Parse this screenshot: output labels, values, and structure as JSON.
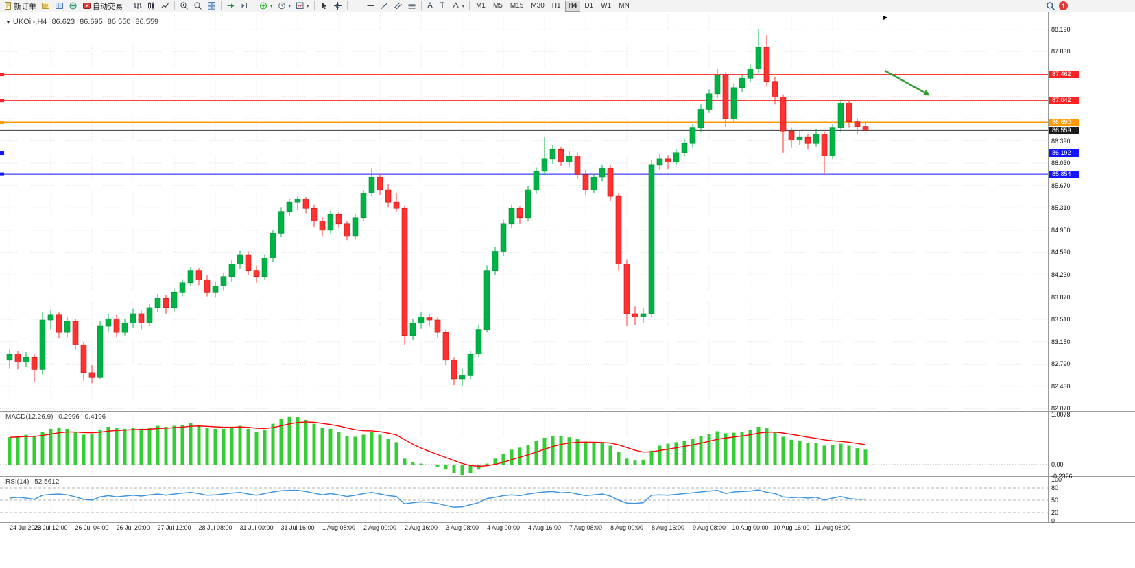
{
  "toolbar": {
    "new_order": "新订单",
    "autotrading": "自动交易",
    "timeframes": [
      "M1",
      "M5",
      "M15",
      "M30",
      "H1",
      "H4",
      "D1",
      "W1",
      "MN"
    ],
    "active_timeframe": "H4",
    "notification_count": "1"
  },
  "symbol_line": {
    "symbol": "UKOil-,H4",
    "open": "86.623",
    "high": "86.695",
    "low": "86.550",
    "close": "86.559"
  },
  "macd_panel": {
    "label": "MACD(12,26,9)",
    "value_main": "0.2996",
    "value_signal": "0.4196",
    "scale_labels": [
      "1.0078",
      "0.00",
      "-0.2326"
    ]
  },
  "rsi_panel": {
    "label": "RSI(14)",
    "value": "52.5612",
    "scale_labels": [
      "100",
      "80",
      "50",
      "20",
      "0"
    ],
    "levels": [
      80,
      50,
      20
    ]
  },
  "colors": {
    "bull": "#00b245",
    "bull_border": "#008f36",
    "bear": "#ff3131",
    "bear_border": "#c41111",
    "macd_hist": "#35cc35",
    "macd_signal": "#ff0000",
    "rsi_line": "#3f95e0",
    "grid": "#e4e4e4",
    "separator": "#9a9a9a",
    "current": "#3a3a3a"
  },
  "chart_data": {
    "type": "candlestick",
    "symbol": "UKOil-",
    "timeframe": "H4",
    "ylim": [
      82.03,
      88.42
    ],
    "price_grid": {
      "start": 82.07,
      "step": 0.36,
      "count": 18
    },
    "y_ticks": [
      "88.190",
      "87.830",
      "86.390",
      "86.030",
      "85.670",
      "85.310",
      "84.950",
      "84.590",
      "84.230",
      "83.870",
      "83.510",
      "83.150",
      "82.790",
      "82.430",
      "82.070"
    ],
    "x_labels": [
      "24 Jul 2023",
      "25 Jul 12:00",
      "26 Jul 04:00",
      "26 Jul 20:00",
      "27 Jul 12:00",
      "28 Jul 08:00",
      "31 Jul 00:00",
      "31 Jul 16:00",
      "1 Aug 08:00",
      "2 Aug 00:00",
      "2 Aug 16:00",
      "3 Aug 08:00",
      "4 Aug 00:00",
      "4 Aug 16:00",
      "7 Aug 08:00",
      "8 Aug 00:00",
      "8 Aug 16:00",
      "9 Aug 08:00",
      "10 Aug 00:00",
      "10 Aug 16:00",
      "11 Aug 08:00"
    ],
    "hlines": [
      {
        "price": 87.462,
        "label": "87.462",
        "color": "#ff2222",
        "width": 1,
        "role": "resistance"
      },
      {
        "price": 87.042,
        "label": "87.042",
        "color": "#ff2222",
        "width": 1,
        "role": "resistance"
      },
      {
        "price": 86.69,
        "label": "86.690",
        "color": "#ff9900",
        "width": 2,
        "role": "pivot"
      },
      {
        "price": 86.192,
        "label": "86.192",
        "color": "#1414ff",
        "width": 1,
        "role": "support"
      },
      {
        "price": 85.854,
        "label": "85.854",
        "color": "#1414ff",
        "width": 1,
        "role": "support"
      }
    ],
    "current_price": {
      "value": 86.559,
      "label": "86.559",
      "color": "#3a3a3a"
    },
    "candles": [
      [
        82.85,
        83.02,
        82.72,
        82.95
      ],
      [
        82.95,
        83.0,
        82.7,
        82.82
      ],
      [
        82.82,
        82.98,
        82.74,
        82.9
      ],
      [
        82.9,
        82.95,
        82.5,
        82.7
      ],
      [
        82.7,
        83.62,
        82.62,
        83.5
      ],
      [
        83.5,
        83.66,
        83.35,
        83.58
      ],
      [
        83.58,
        83.62,
        83.2,
        83.3
      ],
      [
        83.3,
        83.55,
        83.22,
        83.48
      ],
      [
        83.48,
        83.52,
        83.02,
        83.1
      ],
      [
        83.1,
        83.15,
        82.52,
        82.65
      ],
      [
        82.65,
        82.78,
        82.48,
        82.58
      ],
      [
        82.58,
        83.48,
        82.55,
        83.4
      ],
      [
        83.4,
        83.6,
        83.3,
        83.52
      ],
      [
        83.52,
        83.58,
        83.22,
        83.3
      ],
      [
        83.3,
        83.52,
        83.25,
        83.45
      ],
      [
        83.45,
        83.68,
        83.38,
        83.6
      ],
      [
        83.6,
        83.65,
        83.35,
        83.45
      ],
      [
        83.45,
        83.76,
        83.4,
        83.7
      ],
      [
        83.7,
        83.92,
        83.62,
        83.85
      ],
      [
        83.85,
        83.9,
        83.6,
        83.7
      ],
      [
        83.7,
        84.0,
        83.64,
        83.95
      ],
      [
        83.95,
        84.16,
        83.88,
        84.1
      ],
      [
        84.1,
        84.36,
        84.04,
        84.3
      ],
      [
        84.3,
        84.34,
        84.06,
        84.15
      ],
      [
        84.15,
        84.22,
        83.88,
        83.95
      ],
      [
        83.95,
        84.12,
        83.86,
        84.05
      ],
      [
        84.05,
        84.26,
        83.98,
        84.2
      ],
      [
        84.2,
        84.46,
        84.12,
        84.4
      ],
      [
        84.4,
        84.62,
        84.32,
        84.55
      ],
      [
        84.55,
        84.6,
        84.22,
        84.3
      ],
      [
        84.3,
        84.38,
        84.1,
        84.2
      ],
      [
        84.2,
        84.56,
        84.15,
        84.5
      ],
      [
        84.5,
        84.96,
        84.44,
        84.9
      ],
      [
        84.9,
        85.32,
        84.84,
        85.25
      ],
      [
        85.25,
        85.46,
        85.18,
        85.4
      ],
      [
        85.4,
        85.5,
        85.28,
        85.45
      ],
      [
        85.45,
        85.48,
        85.22,
        85.3
      ],
      [
        85.3,
        85.36,
        85.0,
        85.1
      ],
      [
        85.1,
        85.16,
        84.86,
        84.95
      ],
      [
        84.95,
        85.26,
        84.9,
        85.2
      ],
      [
        85.2,
        85.24,
        84.98,
        85.05
      ],
      [
        85.05,
        85.1,
        84.78,
        84.85
      ],
      [
        84.85,
        85.2,
        84.8,
        85.15
      ],
      [
        85.15,
        85.6,
        85.1,
        85.55
      ],
      [
        85.55,
        85.95,
        85.5,
        85.8
      ],
      [
        85.8,
        85.86,
        85.52,
        85.6
      ],
      [
        85.6,
        85.7,
        85.32,
        85.4
      ],
      [
        85.4,
        85.55,
        85.25,
        85.3
      ],
      [
        85.3,
        85.35,
        83.1,
        83.25
      ],
      [
        83.25,
        83.52,
        83.18,
        83.45
      ],
      [
        83.45,
        83.62,
        83.36,
        83.55
      ],
      [
        83.55,
        83.6,
        83.4,
        83.5
      ],
      [
        83.5,
        83.55,
        83.22,
        83.3
      ],
      [
        83.3,
        83.35,
        82.78,
        82.85
      ],
      [
        82.85,
        82.9,
        82.45,
        82.55
      ],
      [
        82.55,
        82.72,
        82.43,
        82.6
      ],
      [
        82.6,
        83.0,
        82.55,
        82.95
      ],
      [
        82.95,
        83.42,
        82.9,
        83.35
      ],
      [
        83.35,
        84.38,
        83.3,
        84.3
      ],
      [
        84.3,
        84.68,
        84.22,
        84.6
      ],
      [
        84.6,
        85.12,
        84.54,
        85.05
      ],
      [
        85.05,
        85.36,
        84.98,
        85.3
      ],
      [
        85.3,
        85.34,
        85.05,
        85.15
      ],
      [
        85.15,
        85.66,
        85.1,
        85.6
      ],
      [
        85.6,
        85.96,
        85.54,
        85.9
      ],
      [
        85.9,
        86.45,
        85.84,
        86.1
      ],
      [
        86.1,
        86.32,
        86.02,
        86.25
      ],
      [
        86.25,
        86.3,
        85.98,
        86.05
      ],
      [
        86.05,
        86.22,
        85.96,
        86.15
      ],
      [
        86.15,
        86.2,
        85.78,
        85.85
      ],
      [
        85.85,
        85.92,
        85.52,
        85.6
      ],
      [
        85.6,
        85.86,
        85.55,
        85.8
      ],
      [
        85.8,
        86.0,
        85.74,
        85.95
      ],
      [
        85.95,
        86.0,
        85.42,
        85.5
      ],
      [
        85.5,
        85.55,
        84.3,
        84.4
      ],
      [
        84.4,
        84.48,
        83.4,
        83.6
      ],
      [
        83.6,
        83.72,
        83.42,
        83.55
      ],
      [
        83.55,
        83.7,
        83.45,
        83.6
      ],
      [
        83.6,
        86.08,
        83.55,
        86.0
      ],
      [
        86.0,
        86.18,
        85.92,
        86.1
      ],
      [
        86.1,
        86.16,
        85.94,
        86.05
      ],
      [
        86.05,
        86.26,
        86.0,
        86.2
      ],
      [
        86.2,
        86.42,
        86.14,
        86.35
      ],
      [
        86.35,
        86.66,
        86.28,
        86.6
      ],
      [
        86.6,
        86.98,
        86.54,
        86.9
      ],
      [
        86.9,
        87.22,
        86.84,
        87.15
      ],
      [
        87.15,
        87.55,
        87.08,
        87.45
      ],
      [
        87.45,
        87.5,
        86.62,
        86.75
      ],
      [
        86.75,
        87.32,
        86.7,
        87.25
      ],
      [
        87.25,
        87.46,
        87.18,
        87.4
      ],
      [
        87.4,
        87.62,
        87.34,
        87.55
      ],
      [
        87.55,
        88.19,
        87.48,
        87.9
      ],
      [
        87.9,
        88.1,
        87.28,
        87.35
      ],
      [
        87.35,
        87.42,
        86.98,
        87.1
      ],
      [
        87.1,
        87.14,
        86.2,
        86.55
      ],
      [
        86.55,
        86.6,
        86.28,
        86.4
      ],
      [
        86.4,
        86.56,
        86.32,
        86.45
      ],
      [
        86.45,
        86.5,
        86.25,
        86.35
      ],
      [
        86.35,
        86.58,
        86.3,
        86.5
      ],
      [
        86.5,
        86.54,
        85.85,
        86.15
      ],
      [
        86.15,
        86.66,
        86.1,
        86.6
      ],
      [
        86.6,
        87.05,
        86.54,
        87.0
      ],
      [
        87.0,
        87.04,
        86.6,
        86.7
      ],
      [
        86.7,
        86.76,
        86.5,
        86.62
      ],
      [
        86.623,
        86.695,
        86.55,
        86.559
      ]
    ],
    "macd": [
      0.55,
      0.58,
      0.6,
      0.58,
      0.66,
      0.72,
      0.75,
      0.72,
      0.65,
      0.6,
      0.62,
      0.7,
      0.76,
      0.74,
      0.72,
      0.74,
      0.72,
      0.74,
      0.78,
      0.76,
      0.78,
      0.8,
      0.84,
      0.8,
      0.74,
      0.72,
      0.72,
      0.75,
      0.78,
      0.72,
      0.66,
      0.7,
      0.82,
      0.92,
      0.97,
      0.96,
      0.9,
      0.82,
      0.74,
      0.72,
      0.66,
      0.58,
      0.56,
      0.6,
      0.66,
      0.6,
      0.52,
      0.45,
      0.12,
      0.04,
      0.02,
      0.0,
      -0.04,
      -0.1,
      -0.17,
      -0.21,
      -0.18,
      -0.1,
      0.02,
      0.12,
      0.22,
      0.3,
      0.34,
      0.4,
      0.47,
      0.54,
      0.58,
      0.57,
      0.55,
      0.51,
      0.46,
      0.44,
      0.43,
      0.38,
      0.26,
      0.12,
      0.08,
      0.1,
      0.28,
      0.38,
      0.42,
      0.45,
      0.48,
      0.52,
      0.57,
      0.62,
      0.67,
      0.63,
      0.64,
      0.66,
      0.7,
      0.76,
      0.73,
      0.66,
      0.56,
      0.5,
      0.47,
      0.44,
      0.43,
      0.38,
      0.4,
      0.42,
      0.38,
      0.33,
      0.3
    ],
    "rsi": [
      55,
      57,
      55,
      52,
      62,
      64,
      65,
      63,
      58,
      52,
      50,
      58,
      61,
      58,
      60,
      62,
      60,
      63,
      65,
      62,
      65,
      67,
      69,
      66,
      62,
      63,
      65,
      67,
      69,
      65,
      62,
      66,
      70,
      73,
      74,
      74,
      71,
      67,
      63,
      66,
      63,
      59,
      62,
      66,
      69,
      65,
      61,
      59,
      41,
      44,
      46,
      45,
      42,
      37,
      33,
      34,
      39,
      44,
      54,
      57,
      61,
      63,
      61,
      65,
      68,
      70,
      71,
      68,
      69,
      65,
      61,
      63,
      65,
      60,
      50,
      43,
      42,
      44,
      62,
      63,
      62,
      64,
      66,
      68,
      70,
      72,
      74,
      66,
      70,
      71,
      72,
      75,
      69,
      66,
      58,
      56,
      57,
      55,
      57,
      50,
      55,
      59,
      54,
      52,
      52.56
    ],
    "annotations": [
      {
        "type": "arrow",
        "from": [
          1290,
          85
        ],
        "to": [
          1348,
          117
        ],
        "color": "#2f9e2f"
      }
    ]
  }
}
